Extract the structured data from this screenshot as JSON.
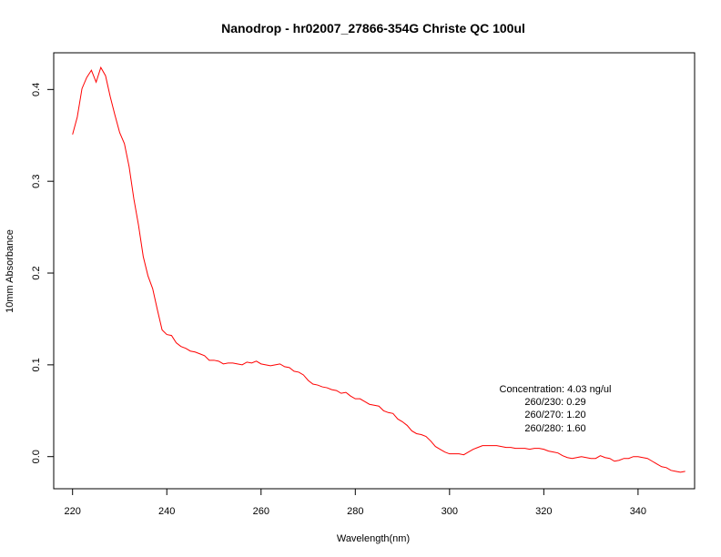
{
  "chart_data": {
    "type": "line",
    "title": "Nanodrop - hr02007_27866-354G Christe QC 100ul",
    "xlabel": "Wavelength(nm)",
    "ylabel": "10mm Absorbance",
    "xlim": [
      216,
      352
    ],
    "ylim": [
      -0.035,
      0.44
    ],
    "x_ticks": [
      220,
      240,
      260,
      280,
      300,
      320,
      340
    ],
    "x_tick_labels": [
      "220",
      "240",
      "260",
      "280",
      "300",
      "320",
      "340"
    ],
    "y_ticks": [
      0.0,
      0.1,
      0.2,
      0.3,
      0.4
    ],
    "y_tick_labels": [
      "0.0",
      "0.1",
      "0.2",
      "0.3",
      "0.4"
    ],
    "grid": false,
    "series_color": "#ff0000",
    "series": [
      {
        "x": [
          220,
          221,
          222,
          223,
          224,
          225,
          226,
          227,
          228,
          229,
          230,
          231,
          232,
          233,
          234,
          235,
          236,
          237,
          238,
          239,
          240,
          241,
          242,
          243,
          244,
          245,
          246,
          247,
          248,
          249,
          250,
          251,
          252,
          253,
          254,
          255,
          256,
          257,
          258,
          259,
          260,
          261,
          262,
          263,
          264,
          265,
          266,
          267,
          268,
          269,
          270,
          271,
          272,
          273,
          274,
          275,
          276,
          277,
          278,
          279,
          280,
          281,
          282,
          283,
          284,
          285,
          286,
          287,
          288,
          289,
          290,
          291,
          292,
          293,
          294,
          295,
          296,
          297,
          298,
          299,
          300,
          301,
          302,
          303,
          304,
          305,
          306,
          307,
          308,
          309,
          310,
          311,
          312,
          313,
          314,
          315,
          316,
          317,
          318,
          319,
          320,
          321,
          322,
          323,
          324,
          325,
          326,
          327,
          328,
          329,
          330,
          331,
          332,
          333,
          334,
          335,
          336,
          337,
          338,
          339,
          340,
          341,
          342,
          343,
          344,
          345,
          346,
          347,
          348,
          349,
          350
        ],
        "y": [
          0.351,
          0.37,
          0.401,
          0.413,
          0.421,
          0.408,
          0.424,
          0.415,
          0.392,
          0.372,
          0.353,
          0.341,
          0.316,
          0.281,
          0.252,
          0.218,
          0.197,
          0.183,
          0.16,
          0.138,
          0.133,
          0.132,
          0.124,
          0.12,
          0.118,
          0.115,
          0.114,
          0.112,
          0.11,
          0.105,
          0.105,
          0.104,
          0.101,
          0.102,
          0.102,
          0.101,
          0.1,
          0.103,
          0.102,
          0.104,
          0.101,
          0.1,
          0.099,
          0.1,
          0.101,
          0.098,
          0.097,
          0.093,
          0.092,
          0.089,
          0.083,
          0.079,
          0.078,
          0.076,
          0.075,
          0.073,
          0.072,
          0.069,
          0.07,
          0.066,
          0.063,
          0.063,
          0.06,
          0.057,
          0.056,
          0.055,
          0.05,
          0.048,
          0.047,
          0.041,
          0.038,
          0.034,
          0.028,
          0.025,
          0.024,
          0.022,
          0.017,
          0.011,
          0.008,
          0.005,
          0.003,
          0.003,
          0.003,
          0.002,
          0.005,
          0.008,
          0.01,
          0.012,
          0.012,
          0.012,
          0.012,
          0.011,
          0.01,
          0.01,
          0.009,
          0.009,
          0.009,
          0.008,
          0.009,
          0.009,
          0.008,
          0.006,
          0.005,
          0.004,
          0.001,
          -0.001,
          -0.002,
          -0.001,
          0.0,
          -0.001,
          -0.002,
          -0.002,
          0.001,
          -0.001,
          -0.002,
          -0.005,
          -0.004,
          -0.002,
          -0.002,
          0.0,
          0.0,
          -0.001,
          -0.002,
          -0.005,
          -0.008,
          -0.011,
          -0.012,
          -0.015,
          -0.016,
          -0.017,
          -0.016
        ]
      }
    ],
    "annotations": [
      "Concentration: 4.03 ng/ul",
      "260/230: 0.29",
      "260/270: 1.20",
      "260/280: 1.60"
    ]
  }
}
